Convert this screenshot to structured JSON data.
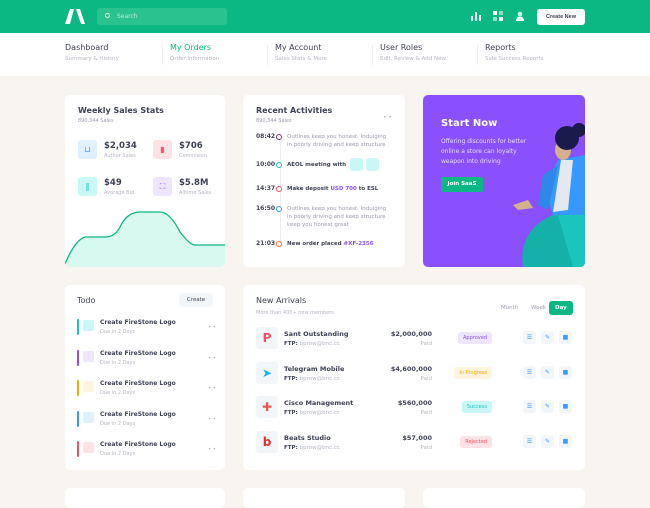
{
  "header": {
    "search_placeholder": "Search",
    "create_new": "Create New",
    "icons": [
      "chart-bar-icon",
      "grid-icon",
      "user-icon"
    ],
    "brand_color": "#0bb783"
  },
  "nav": [
    {
      "title": "Dashboard",
      "sub": "Summary & History"
    },
    {
      "title": "My Orders",
      "sub": "Order Information",
      "active": true
    },
    {
      "title": "My Account",
      "sub": "Sales Stats & More"
    },
    {
      "title": "User Roles",
      "sub": "Edit, Review & Add New"
    },
    {
      "title": "Reports",
      "sub": "Sale Success Reports"
    }
  ],
  "weekly": {
    "title": "Weekly Sales Stats",
    "subtitle": "890,344 Sales",
    "stats": [
      {
        "value": "$2,034",
        "label": "Author Sales",
        "icon": "basket-icon",
        "color": "#3699ff",
        "bg": "#e1f0ff"
      },
      {
        "value": "$706",
        "label": "Commision",
        "icon": "chart-icon",
        "color": "#f64e60",
        "bg": "#ffe2e5"
      },
      {
        "value": "$49",
        "label": "Avarage Bid",
        "icon": "books-icon",
        "color": "#1bc5bd",
        "bg": "#c9f7f5"
      },
      {
        "value": "$5.8M",
        "label": "Alltime Sales",
        "icon": "expand-icon",
        "color": "#8950fc",
        "bg": "#eee5ff"
      }
    ]
  },
  "activities": {
    "title": "Recent Activities",
    "subtitle": "890,344 Sales",
    "items": [
      {
        "time": "08:42",
        "text": "Outlines keep you honest. Indulging in poorly driving and keep structure",
        "color": "#6d3d6b",
        "bold": false
      },
      {
        "time": "10:00",
        "text": "AEOL meeting with",
        "color": "#1bc5bd",
        "bold": true
      },
      {
        "time": "14:37",
        "text": "Make deposit ",
        "highlight": "USD 700",
        "suffix": " to ESL",
        "color": "#f64e60",
        "bold": true
      },
      {
        "time": "16:50",
        "text": "Outlines keep you honest. Indulging in poorly driving and keep structure keep you honest great",
        "color": "#3699ff",
        "bold": false
      },
      {
        "time": "21:03",
        "text": "New order placed ",
        "highlight": "#XF-2356",
        "color": "#ff6a2b",
        "bold": true
      }
    ]
  },
  "promo": {
    "title": "Start Now",
    "text": "Offering discounts for better online a store can loyalty weapon into driving",
    "button": "Join SaaS"
  },
  "todo": {
    "title": "Todo",
    "create": "Create",
    "items": [
      {
        "title": "Create FireStone Logo",
        "due": "Due in 2 Days",
        "color": "#1bc5bd",
        "bg": "#c9f7f5"
      },
      {
        "title": "Create FireStone Logo",
        "due": "Due in 2 Days",
        "color": "#8950fc",
        "bg": "#eee5ff"
      },
      {
        "title": "Create FireStone Logo",
        "due": "Due in 2 Days",
        "color": "#ffa800",
        "bg": "#fff4de"
      },
      {
        "title": "Create FireStone Logo",
        "due": "Due in 2 Days",
        "color": "#3699ff",
        "bg": "#e1f0ff"
      },
      {
        "title": "Create FireStone Logo",
        "due": "Due in 2 Days",
        "color": "#f64e60",
        "bg": "#ffe2e5"
      }
    ]
  },
  "arrivals": {
    "title": "New Arrivals",
    "subtitle": "More than 400+ new members",
    "periods": [
      "Month",
      "Week",
      "Day"
    ],
    "ftp_label": "FTP:",
    "rows": [
      {
        "name": "Sant Outstanding",
        "email": "bprow@bnc.cc",
        "amount": "$2,000,000",
        "paid": "Paid",
        "status": "Approved",
        "sc": "#8950fc",
        "sb": "#eee5ff",
        "logo": "P",
        "lc": "#f64e60"
      },
      {
        "name": "Telegram Mobile",
        "email": "bprow@bnc.cc",
        "amount": "$4,600,000",
        "paid": "Paid",
        "status": "In Progress",
        "sc": "#ffa800",
        "sb": "#fff4de",
        "logo": "➤",
        "lc": "#20b5f0"
      },
      {
        "name": "Cisco Management",
        "email": "bprow@bnc.cc",
        "amount": "$560,000",
        "paid": "Paid",
        "status": "Success",
        "sc": "#1bc5bd",
        "sb": "#c9f7f5",
        "logo": "✚",
        "lc": "#e85a4f"
      },
      {
        "name": "Beats Studio",
        "email": "bprow@bnc.cc",
        "amount": "$57,000",
        "paid": "Paid",
        "status": "Rejected",
        "sc": "#f64e60",
        "sb": "#ffe2e5",
        "logo": "b",
        "lc": "#e52c2c"
      }
    ]
  }
}
